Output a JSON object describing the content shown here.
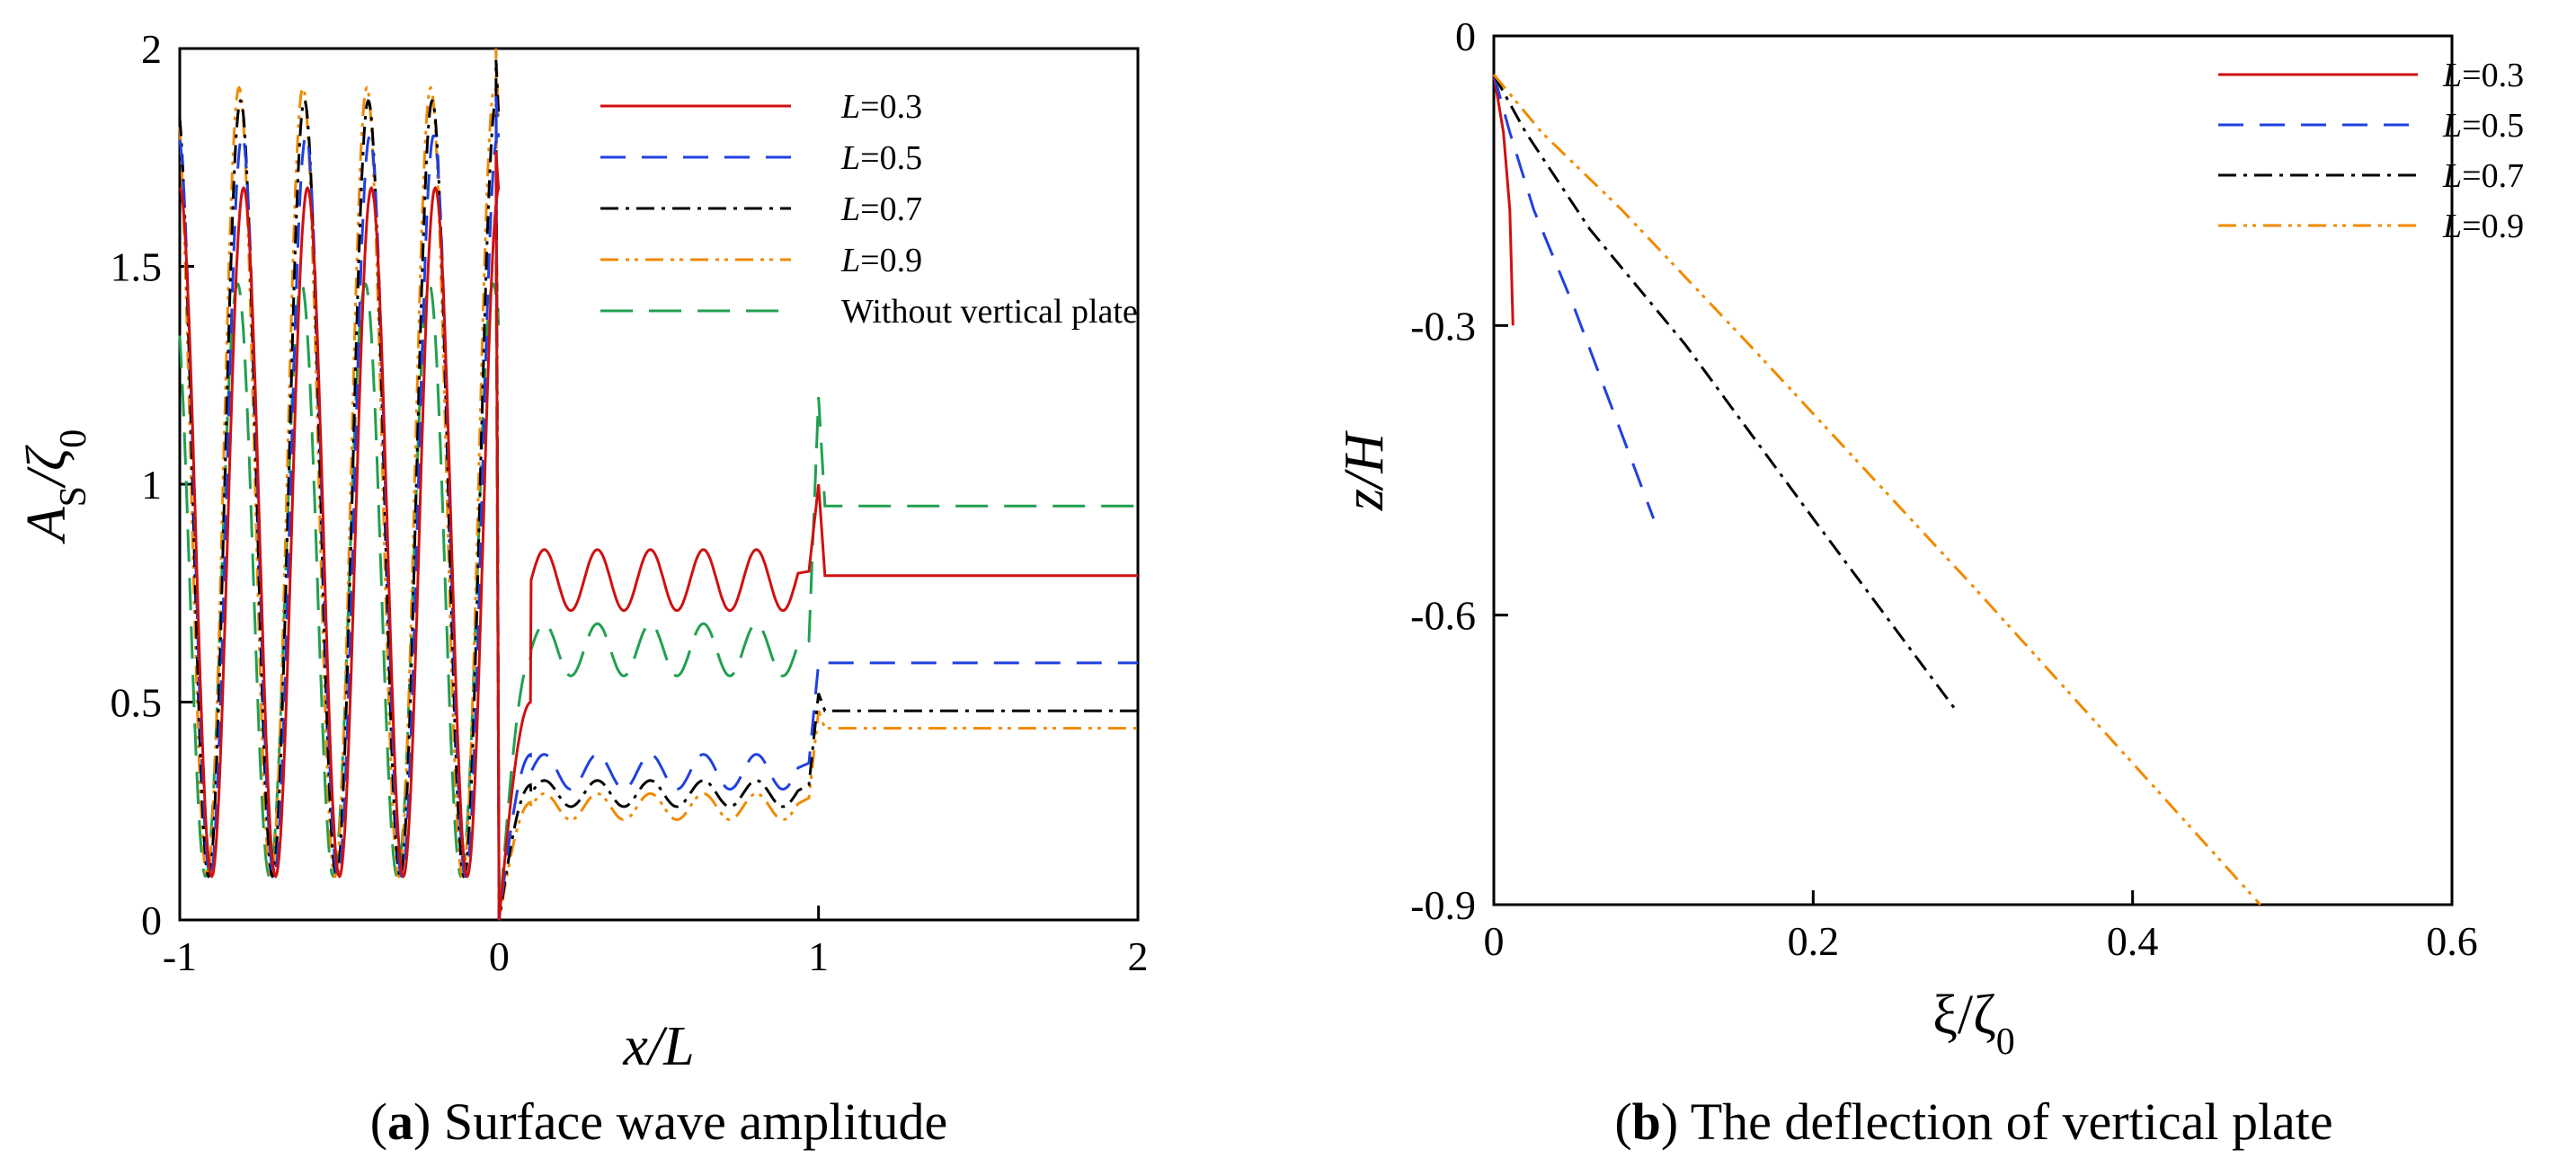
{
  "chart_data": [
    {
      "type": "line",
      "caption": {
        "label": "a",
        "text": "Surface wave amplitude"
      },
      "xlabel": "x/L",
      "ylabel": {
        "base": "A",
        "sub": "S",
        "post": "/ζ",
        "sub2": "0"
      },
      "xlim": [
        -1,
        2
      ],
      "ylim": [
        0,
        2
      ],
      "xticks": [
        "-1",
        "0",
        "1",
        "2"
      ],
      "yticks": [
        "0",
        "0.5",
        "1",
        "1.5",
        "2"
      ],
      "series": [
        {
          "label_var": "L",
          "label_rest": "=0.3",
          "name": "L=0.3",
          "color": "#d01010",
          "dash": "none",
          "params": {
            "lA": 1.68,
            "lMin": 0.1,
            "tA": 0.78,
            "tStart": 0.5,
            "tFinal": 0.79,
            "tOsc": 0.07,
            "peak": 1.0
          }
        },
        {
          "label_var": "L",
          "label_rest": "=0.5",
          "name": "L=0.5",
          "color": "#2040e0",
          "dash": "28,18",
          "params": {
            "lA": 1.8,
            "lMin": 0.1,
            "tA": 0.34,
            "tStart": 0.38,
            "tFinal": 0.59,
            "tOsc": 0.04,
            "peak": 0.59
          }
        },
        {
          "label_var": "L",
          "label_rest": "=0.7",
          "name": "L=0.7",
          "color": "#000000",
          "dash": "20,8,4,8",
          "params": {
            "lA": 1.88,
            "lMin": 0.1,
            "tA": 0.29,
            "tStart": 0.31,
            "tFinal": 0.48,
            "tOsc": 0.03,
            "peak": 0.52
          }
        },
        {
          "label_var": "L",
          "label_rest": "=0.9",
          "name": "L=0.9",
          "color": "#f08a00",
          "dash": "20,8,4,6,4,8",
          "params": {
            "lA": 1.91,
            "lMin": 0.1,
            "tA": 0.26,
            "tStart": 0.27,
            "tFinal": 0.44,
            "tOsc": 0.03,
            "peak": 0.48
          }
        },
        {
          "label_var": "",
          "label_rest": "Without vertical plate",
          "name": "Without vertical plate",
          "color": "#20a050",
          "dash": "36,18",
          "params": {
            "lA": 1.46,
            "lMin": 0.1,
            "tA": 0.62,
            "tStart": 0.6,
            "tFinal": 0.95,
            "tOsc": 0.06,
            "peak": 1.2
          }
        }
      ]
    },
    {
      "type": "line",
      "caption": {
        "label": "b",
        "text": "The deflection of vertical plate"
      },
      "xlabel": {
        "base": "ξ/ζ",
        "sub": "0"
      },
      "ylabel": "z/H",
      "xlim": [
        0,
        0.6
      ],
      "ylim": [
        -0.9,
        0
      ],
      "xticks": [
        "0",
        "0.2",
        "0.4",
        "0.6"
      ],
      "yticks": [
        "0",
        "-0.3",
        "-0.6",
        "-0.9"
      ],
      "series": [
        {
          "label_var": "L",
          "label_rest": "=0.3",
          "name": "L=0.3",
          "color": "#d01010",
          "dash": "none",
          "points": [
            [
              0.0,
              -0.04
            ],
            [
              0.006,
              -0.1
            ],
            [
              0.01,
              -0.18
            ],
            [
              0.012,
              -0.3
            ]
          ]
        },
        {
          "label_var": "L",
          "label_rest": "=0.5",
          "name": "L=0.5",
          "color": "#2040e0",
          "dash": "28,18",
          "points": [
            [
              0.0,
              -0.04
            ],
            [
              0.01,
              -0.1
            ],
            [
              0.025,
              -0.18
            ],
            [
              0.05,
              -0.28
            ],
            [
              0.075,
              -0.39
            ],
            [
              0.1,
              -0.5
            ]
          ]
        },
        {
          "label_var": "L",
          "label_rest": "=0.7",
          "name": "L=0.7",
          "color": "#000000",
          "dash": "20,8,4,8",
          "points": [
            [
              0.0,
              -0.04
            ],
            [
              0.02,
              -0.1
            ],
            [
              0.06,
              -0.2
            ],
            [
              0.12,
              -0.32
            ],
            [
              0.2,
              -0.5
            ],
            [
              0.29,
              -0.7
            ]
          ]
        },
        {
          "label_var": "L",
          "label_rest": "=0.9",
          "name": "L=0.9",
          "color": "#f08a00",
          "dash": "20,8,4,6,4,8",
          "points": [
            [
              0.0,
              -0.04
            ],
            [
              0.03,
              -0.1
            ],
            [
              0.08,
              -0.18
            ],
            [
              0.16,
              -0.32
            ],
            [
              0.3,
              -0.57
            ],
            [
              0.48,
              -0.9
            ]
          ]
        }
      ]
    }
  ]
}
